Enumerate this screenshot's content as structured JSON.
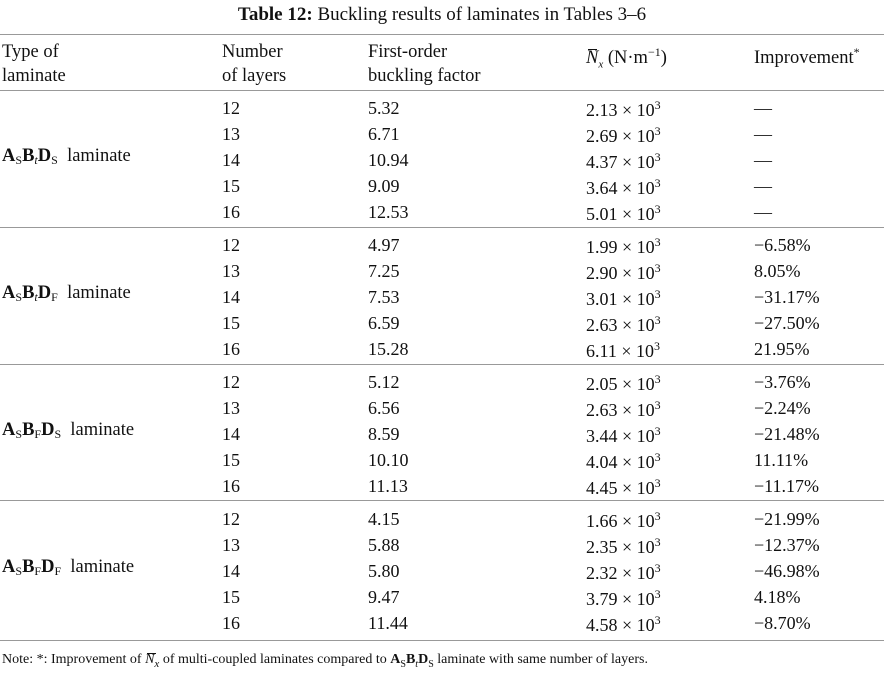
{
  "title": {
    "label": "Table 12:",
    "text": "Buckling results of laminates in Tables 3–6"
  },
  "headers": {
    "type": [
      "Type of",
      "laminate"
    ],
    "layers": [
      "Number",
      "of layers"
    ],
    "factor": [
      "First-order",
      "buckling factor"
    ],
    "nx": {
      "symbol": "N",
      "sub": "x",
      "unit": "(N·m",
      "unit_exp": "−1",
      "unit_close": ")"
    },
    "improvement": {
      "text": "Improvement",
      "mark": "*"
    }
  },
  "groups": [
    {
      "label": [
        {
          "b": "A",
          "sub": "S",
          "it": false
        },
        {
          "b": "B",
          "sub": "t",
          "it": true
        },
        {
          "b": "D",
          "sub": "S",
          "it": false
        }
      ],
      "suffix": "laminate",
      "rows": [
        {
          "layers": "12",
          "factor": "5.32",
          "nx": "2.13",
          "exp": "3",
          "imp": "—"
        },
        {
          "layers": "13",
          "factor": "6.71",
          "nx": "2.69",
          "exp": "3",
          "imp": "—"
        },
        {
          "layers": "14",
          "factor": "10.94",
          "nx": "4.37",
          "exp": "3",
          "imp": "—"
        },
        {
          "layers": "15",
          "factor": "9.09",
          "nx": "3.64",
          "exp": "3",
          "imp": "—"
        },
        {
          "layers": "16",
          "factor": "12.53",
          "nx": "5.01",
          "exp": "3",
          "imp": "—"
        }
      ]
    },
    {
      "label": [
        {
          "b": "A",
          "sub": "S",
          "it": false
        },
        {
          "b": "B",
          "sub": "t",
          "it": true
        },
        {
          "b": "D",
          "sub": "F",
          "it": false
        }
      ],
      "suffix": "laminate",
      "rows": [
        {
          "layers": "12",
          "factor": "4.97",
          "nx": "1.99",
          "exp": "3",
          "imp": "−6.58%"
        },
        {
          "layers": "13",
          "factor": "7.25",
          "nx": "2.90",
          "exp": "3",
          "imp": "8.05%"
        },
        {
          "layers": "14",
          "factor": "7.53",
          "nx": "3.01",
          "exp": "3",
          "imp": "−31.17%"
        },
        {
          "layers": "15",
          "factor": "6.59",
          "nx": "2.63",
          "exp": "3",
          "imp": "−27.50%"
        },
        {
          "layers": "16",
          "factor": "15.28",
          "nx": "6.11",
          "exp": "3",
          "imp": "21.95%"
        }
      ]
    },
    {
      "label": [
        {
          "b": "A",
          "sub": "S",
          "it": false
        },
        {
          "b": "B",
          "sub": "F",
          "it": false
        },
        {
          "b": "D",
          "sub": "S",
          "it": false
        }
      ],
      "suffix": "laminate",
      "rows": [
        {
          "layers": "12",
          "factor": "5.12",
          "nx": "2.05",
          "exp": "3",
          "imp": "−3.76%"
        },
        {
          "layers": "13",
          "factor": "6.56",
          "nx": "2.63",
          "exp": "3",
          "imp": "−2.24%"
        },
        {
          "layers": "14",
          "factor": "8.59",
          "nx": "3.44",
          "exp": "3",
          "imp": "−21.48%"
        },
        {
          "layers": "15",
          "factor": "10.10",
          "nx": "4.04",
          "exp": "3",
          "imp": "11.11%"
        },
        {
          "layers": "16",
          "factor": "11.13",
          "nx": "4.45",
          "exp": "3",
          "imp": "−11.17%"
        }
      ]
    },
    {
      "label": [
        {
          "b": "A",
          "sub": "S",
          "it": false
        },
        {
          "b": "B",
          "sub": "F",
          "it": false
        },
        {
          "b": "D",
          "sub": "F",
          "it": false
        }
      ],
      "suffix": "laminate",
      "rows": [
        {
          "layers": "12",
          "factor": "4.15",
          "nx": "1.66",
          "exp": "3",
          "imp": "−21.99%"
        },
        {
          "layers": "13",
          "factor": "5.88",
          "nx": "2.35",
          "exp": "3",
          "imp": "−12.37%"
        },
        {
          "layers": "14",
          "factor": "5.80",
          "nx": "2.32",
          "exp": "3",
          "imp": "−46.98%"
        },
        {
          "layers": "15",
          "factor": "9.47",
          "nx": "3.79",
          "exp": "3",
          "imp": "4.18%"
        },
        {
          "layers": "16",
          "factor": "11.44",
          "nx": "4.58",
          "exp": "3",
          "imp": "−8.70%"
        }
      ]
    }
  ],
  "times_ten": "× 10",
  "note": {
    "prefix": "Note: *: Improvement of",
    "symbol": "N",
    "sub": "x",
    "middle": "of multi-coupled laminates compared to",
    "ref": [
      {
        "b": "A",
        "sub": "S"
      },
      {
        "b": "B",
        "sub": "t"
      },
      {
        "b": "D",
        "sub": "S"
      }
    ],
    "suffix": "laminate with same number of layers."
  }
}
